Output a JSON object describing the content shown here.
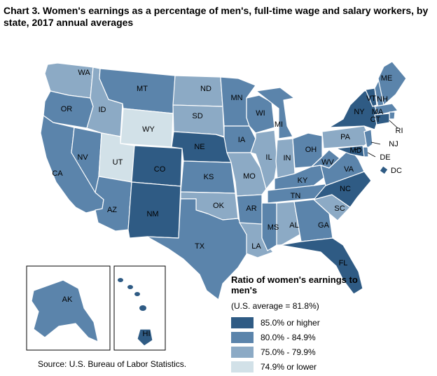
{
  "title": "Chart 3. Women's earnings as a percentage of men's, full-time wage and salary workers, by state, 2017 annual averages",
  "source": "Source: U.S. Bureau of Labor Statistics.",
  "legend": {
    "title": "Ratio of women's earnings to men's",
    "subtitle": "(U.S. average = 81.8%)",
    "items": [
      {
        "label": "85.0% or higher",
        "color": "#2f5b84"
      },
      {
        "label": "80.0% - 84.9%",
        "color": "#5b84ab"
      },
      {
        "label": "75.0% - 79.9%",
        "color": "#8caac5"
      },
      {
        "label": "74.9% or lower",
        "color": "#d2e1e8"
      }
    ]
  },
  "chart_data": {
    "type": "choropleth",
    "region": "United States",
    "classes": [
      "85.0% or higher",
      "80.0% - 84.9%",
      "75.0% - 79.9%",
      "74.9% or lower"
    ],
    "states": [
      {
        "abbr": "WA",
        "class": 2
      },
      {
        "abbr": "OR",
        "class": 1
      },
      {
        "abbr": "CA",
        "class": 1
      },
      {
        "abbr": "NV",
        "class": 1
      },
      {
        "abbr": "ID",
        "class": 2
      },
      {
        "abbr": "MT",
        "class": 1
      },
      {
        "abbr": "WY",
        "class": 3
      },
      {
        "abbr": "UT",
        "class": 3
      },
      {
        "abbr": "AZ",
        "class": 1
      },
      {
        "abbr": "CO",
        "class": 0
      },
      {
        "abbr": "NM",
        "class": 0
      },
      {
        "abbr": "ND",
        "class": 2
      },
      {
        "abbr": "SD",
        "class": 2
      },
      {
        "abbr": "NE",
        "class": 0
      },
      {
        "abbr": "KS",
        "class": 1
      },
      {
        "abbr": "OK",
        "class": 2
      },
      {
        "abbr": "TX",
        "class": 1
      },
      {
        "abbr": "MN",
        "class": 1
      },
      {
        "abbr": "IA",
        "class": 1
      },
      {
        "abbr": "MO",
        "class": 2
      },
      {
        "abbr": "AR",
        "class": 1
      },
      {
        "abbr": "LA",
        "class": 2
      },
      {
        "abbr": "WI",
        "class": 1
      },
      {
        "abbr": "IL",
        "class": 2
      },
      {
        "abbr": "MI",
        "class": 1
      },
      {
        "abbr": "IN",
        "class": 2
      },
      {
        "abbr": "OH",
        "class": 1
      },
      {
        "abbr": "KY",
        "class": 1
      },
      {
        "abbr": "TN",
        "class": 1
      },
      {
        "abbr": "MS",
        "class": 1
      },
      {
        "abbr": "AL",
        "class": 2
      },
      {
        "abbr": "GA",
        "class": 1
      },
      {
        "abbr": "FL",
        "class": 0
      },
      {
        "abbr": "SC",
        "class": 2
      },
      {
        "abbr": "NC",
        "class": 0
      },
      {
        "abbr": "VA",
        "class": 1
      },
      {
        "abbr": "WV",
        "class": 1
      },
      {
        "abbr": "PA",
        "class": 2
      },
      {
        "abbr": "NY",
        "class": 0
      },
      {
        "abbr": "VT",
        "class": 0
      },
      {
        "abbr": "NH",
        "class": 1
      },
      {
        "abbr": "ME",
        "class": 1
      },
      {
        "abbr": "MA",
        "class": 1
      },
      {
        "abbr": "RI",
        "class": 1
      },
      {
        "abbr": "CT",
        "class": 0
      },
      {
        "abbr": "NJ",
        "class": 1
      },
      {
        "abbr": "DE",
        "class": 1
      },
      {
        "abbr": "MD",
        "class": 0
      },
      {
        "abbr": "DC",
        "class": 0
      },
      {
        "abbr": "AK",
        "class": 1
      },
      {
        "abbr": "HI",
        "class": 0
      }
    ]
  }
}
